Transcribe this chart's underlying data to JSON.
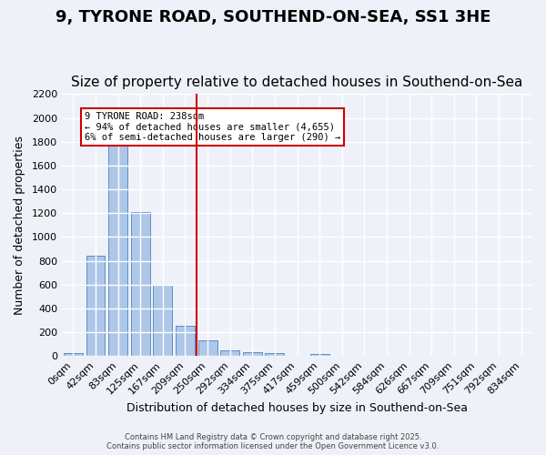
{
  "title": "9, TYRONE ROAD, SOUTHEND-ON-SEA, SS1 3HE",
  "subtitle": "Size of property relative to detached houses in Southend-on-Sea",
  "xlabel": "Distribution of detached houses by size in Southend-on-Sea",
  "ylabel": "Number of detached properties",
  "bin_labels": [
    "0sqm",
    "42sqm",
    "83sqm",
    "125sqm",
    "167sqm",
    "209sqm",
    "250sqm",
    "292sqm",
    "334sqm",
    "375sqm",
    "417sqm",
    "459sqm",
    "500sqm",
    "542sqm",
    "584sqm",
    "626sqm",
    "667sqm",
    "709sqm",
    "751sqm",
    "792sqm",
    "834sqm"
  ],
  "bar_heights": [
    25,
    845,
    1810,
    1210,
    595,
    255,
    130,
    45,
    30,
    25,
    0,
    15,
    0,
    0,
    0,
    0,
    0,
    0,
    0,
    0,
    0
  ],
  "bar_color": "#aec6e8",
  "bar_edge_color": "#5a8fc2",
  "vline_x": 5.5,
  "vline_color": "#cc0000",
  "annotation_text": "9 TYRONE ROAD: 238sqm\n← 94% of detached houses are smaller (4,655)\n6% of semi-detached houses are larger (290) →",
  "annotation_box_color": "#ffffff",
  "annotation_border_color": "#cc0000",
  "ylim": [
    0,
    2200
  ],
  "yticks": [
    0,
    200,
    400,
    600,
    800,
    1000,
    1200,
    1400,
    1600,
    1800,
    2000,
    2200
  ],
  "background_color": "#eef2f8",
  "grid_color": "#ffffff",
  "footer1": "Contains HM Land Registry data © Crown copyright and database right 2025.",
  "footer2": "Contains public sector information licensed under the Open Government Licence v3.0.",
  "title_fontsize": 13,
  "subtitle_fontsize": 11,
  "tick_fontsize": 8,
  "label_fontsize": 9
}
